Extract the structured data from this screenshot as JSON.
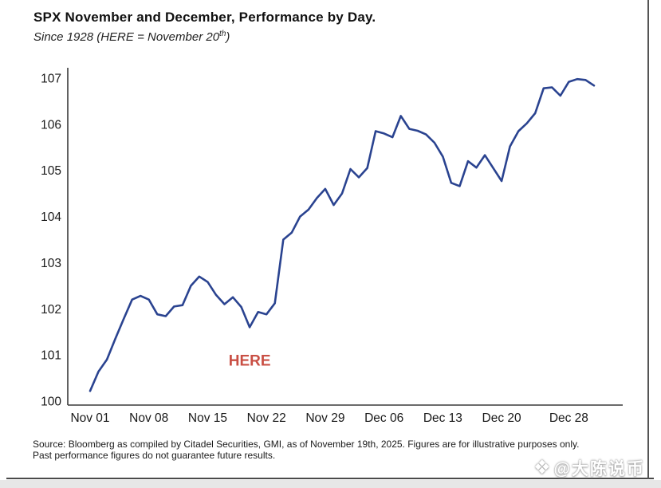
{
  "page": {
    "title": "SPX November and December, Performance by Day.",
    "subtitle_prefix": "Since 1928 (HERE = November 20",
    "subtitle_sup": "th",
    "subtitle_suffix": ")",
    "source_line1": "Source: Bloomberg as compiled by Citadel Securities, GMI, as of November 19th, 2025. Figures are for illustrative purposes only.",
    "source_line2": "Past performance figures do not guarantee future results.",
    "watermark": {
      "icon": "binance-diamond-icon",
      "icon_glyph": "❖",
      "text": "@大陈说币"
    }
  },
  "colors": {
    "line": "#2a4390",
    "axis": "#3a3a3a",
    "text": "#1a1a1a",
    "annotation": "#c94f44",
    "bottom_strip": "#e7e7e7",
    "frame_rule": "#4a4a4a"
  },
  "chart_data": {
    "type": "line",
    "title": "SPX November and December, Performance by Day.",
    "subtitle": "Since 1928 (HERE = November 20th)",
    "xlabel": "",
    "ylabel": "",
    "ylim": [
      100,
      107
    ],
    "y_ticks": [
      100,
      101,
      102,
      103,
      104,
      105,
      106,
      107
    ],
    "x_tick_labels": [
      "Nov 01",
      "Nov 08",
      "Nov 15",
      "Nov 22",
      "Nov 29",
      "Dec 06",
      "Dec 13",
      "Dec 20",
      "Dec 28"
    ],
    "x_tick_day_index": [
      0,
      7,
      14,
      21,
      28,
      35,
      42,
      49,
      57
    ],
    "grid": false,
    "legend": false,
    "annotation": {
      "text": "HERE",
      "day": "Nov 20",
      "day_index": 19,
      "value": 101.6
    },
    "series": [
      {
        "name": "SPX average Nov-Dec performance since 1928 (indexed to 100)",
        "days": [
          "Nov 01",
          "Nov 02",
          "Nov 03",
          "Nov 04",
          "Nov 05",
          "Nov 06",
          "Nov 07",
          "Nov 08",
          "Nov 09",
          "Nov 10",
          "Nov 11",
          "Nov 12",
          "Nov 13",
          "Nov 14",
          "Nov 15",
          "Nov 16",
          "Nov 17",
          "Nov 18",
          "Nov 19",
          "Nov 20",
          "Nov 21",
          "Nov 22",
          "Nov 23",
          "Nov 24",
          "Nov 25",
          "Nov 26",
          "Nov 27",
          "Nov 28",
          "Nov 29",
          "Nov 30",
          "Dec 01",
          "Dec 02",
          "Dec 03",
          "Dec 04",
          "Dec 05",
          "Dec 06",
          "Dec 07",
          "Dec 08",
          "Dec 09",
          "Dec 10",
          "Dec 11",
          "Dec 12",
          "Dec 13",
          "Dec 14",
          "Dec 15",
          "Dec 16",
          "Dec 17",
          "Dec 18",
          "Dec 19",
          "Dec 20",
          "Dec 21",
          "Dec 22",
          "Dec 23",
          "Dec 24",
          "Dec 25",
          "Dec 26",
          "Dec 27",
          "Dec 28",
          "Dec 29",
          "Dec 30",
          "Dec 31"
        ],
        "values": [
          100.22,
          100.64,
          100.9,
          101.35,
          101.78,
          102.2,
          102.28,
          102.2,
          101.88,
          101.84,
          102.05,
          102.08,
          102.5,
          102.7,
          102.58,
          102.3,
          102.1,
          102.25,
          102.04,
          101.6,
          101.93,
          101.88,
          102.12,
          103.5,
          103.65,
          104.0,
          104.15,
          104.4,
          104.6,
          104.25,
          104.5,
          105.03,
          104.85,
          105.05,
          105.85,
          105.8,
          105.72,
          106.18,
          105.9,
          105.86,
          105.78,
          105.6,
          105.3,
          104.73,
          104.66,
          105.2,
          105.06,
          105.33,
          105.05,
          104.77,
          105.52,
          105.85,
          106.02,
          106.24,
          106.78,
          106.8,
          106.62,
          106.92,
          106.98,
          106.96,
          106.84
        ]
      }
    ]
  }
}
